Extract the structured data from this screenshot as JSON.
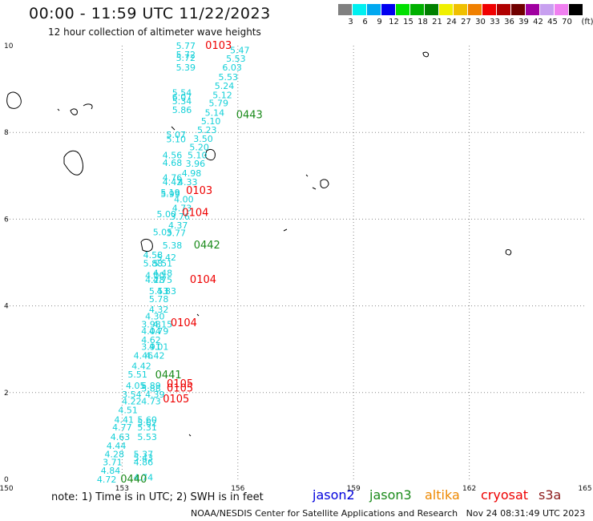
{
  "header": {
    "title": "00:00 - 11:59 UTC 11/22/2023",
    "subtitle": "12 hour collection of altimeter wave heights"
  },
  "legend": {
    "unit": "(ft)",
    "bins": [
      {
        "label": "3",
        "color": "#808080"
      },
      {
        "label": "6",
        "color": "#00f0f0"
      },
      {
        "label": "9",
        "color": "#00a8f0"
      },
      {
        "label": "12",
        "color": "#0000f0"
      },
      {
        "label": "15",
        "color": "#00e000"
      },
      {
        "label": "18",
        "color": "#00b000"
      },
      {
        "label": "21",
        "color": "#008000"
      },
      {
        "label": "24",
        "color": "#f0f000"
      },
      {
        "label": "27",
        "color": "#f0c000"
      },
      {
        "label": "30",
        "color": "#f08000"
      },
      {
        "label": "33",
        "color": "#f00000"
      },
      {
        "label": "36",
        "color": "#b00000"
      },
      {
        "label": "39",
        "color": "#700000"
      },
      {
        "label": "42",
        "color": "#a000a0"
      },
      {
        "label": "45",
        "color": "#c8a0f0"
      },
      {
        "label": "70",
        "color": "#f080f0"
      },
      {
        "label": "",
        "color": "#000000"
      }
    ]
  },
  "map": {
    "lon_range": [
      150,
      165
    ],
    "lat_range": [
      0,
      10
    ],
    "lon_ticks": [
      150,
      153,
      156,
      159,
      162,
      165
    ],
    "lat_ticks": [
      0,
      2,
      4,
      6,
      8,
      10
    ],
    "colors": {
      "wave_value": "#13d0d8",
      "cryosat": "#ee0000",
      "jason3": "#1a8a1a",
      "grid": "#888888",
      "coast": "#000000"
    },
    "time_labels": [
      {
        "text": "0103",
        "sat": "cryosat",
        "lon": 155.5,
        "lat": 10.0
      },
      {
        "text": "0443",
        "sat": "jason3",
        "lon": 156.3,
        "lat": 8.4
      },
      {
        "text": "0103",
        "sat": "cryosat",
        "lon": 155.0,
        "lat": 6.65
      },
      {
        "text": "0104",
        "sat": "cryosat",
        "lon": 154.9,
        "lat": 6.15
      },
      {
        "text": "0442",
        "sat": "jason3",
        "lon": 155.2,
        "lat": 5.4
      },
      {
        "text": "0104",
        "sat": "cryosat",
        "lon": 155.1,
        "lat": 4.6
      },
      {
        "text": "0104",
        "sat": "cryosat",
        "lon": 154.6,
        "lat": 3.6
      },
      {
        "text": "0441",
        "sat": "jason3",
        "lon": 154.2,
        "lat": 2.4
      },
      {
        "text": "0105",
        "sat": "cryosat",
        "lon": 154.5,
        "lat": 2.2
      },
      {
        "text": "0105",
        "sat": "cryosat",
        "lon": 154.5,
        "lat": 2.1
      },
      {
        "text": "0105",
        "sat": "cryosat",
        "lon": 154.4,
        "lat": 1.85
      },
      {
        "text": "0440",
        "sat": "jason3",
        "lon": 153.3,
        "lat": 0.0
      }
    ],
    "wave_heights": [
      {
        "v": "5.77",
        "lon": 154.65,
        "lat": 10.0
      },
      {
        "v": "5.72",
        "lon": 154.65,
        "lat": 9.8
      },
      {
        "v": "5.72",
        "lon": 154.65,
        "lat": 9.72
      },
      {
        "v": "5.39",
        "lon": 154.65,
        "lat": 9.5
      },
      {
        "v": "5.54",
        "lon": 154.55,
        "lat": 8.92
      },
      {
        "v": "6.07",
        "lon": 154.55,
        "lat": 8.82
      },
      {
        "v": "5.34",
        "lon": 154.55,
        "lat": 8.72
      },
      {
        "v": "5.86",
        "lon": 154.55,
        "lat": 8.52
      },
      {
        "v": "5.07",
        "lon": 154.4,
        "lat": 7.95
      },
      {
        "v": "5.10",
        "lon": 154.4,
        "lat": 7.85
      },
      {
        "v": "4.56",
        "lon": 154.3,
        "lat": 7.48
      },
      {
        "v": "4.68",
        "lon": 154.3,
        "lat": 7.3
      },
      {
        "v": "4.76",
        "lon": 154.3,
        "lat": 6.96
      },
      {
        "v": "4.42",
        "lon": 154.3,
        "lat": 6.86
      },
      {
        "v": "5.19",
        "lon": 154.25,
        "lat": 6.62
      },
      {
        "v": "5.99",
        "lon": 154.25,
        "lat": 6.58
      },
      {
        "v": "5.00",
        "lon": 154.15,
        "lat": 6.12
      },
      {
        "v": "5.05",
        "lon": 154.05,
        "lat": 5.7
      },
      {
        "v": "4.58",
        "lon": 153.8,
        "lat": 5.18
      },
      {
        "v": "5.42",
        "lon": 154.15,
        "lat": 5.12
      },
      {
        "v": "5.88",
        "lon": 153.8,
        "lat": 4.98
      },
      {
        "v": "5.51",
        "lon": 154.05,
        "lat": 4.98
      },
      {
        "v": "4.48",
        "lon": 154.05,
        "lat": 4.76
      },
      {
        "v": "4.00",
        "lon": 153.85,
        "lat": 4.7
      },
      {
        "v": "4.28",
        "lon": 153.85,
        "lat": 4.6
      },
      {
        "v": "4.75",
        "lon": 154.05,
        "lat": 4.6
      },
      {
        "v": "5.53",
        "lon": 153.95,
        "lat": 4.34
      },
      {
        "v": "4.83",
        "lon": 154.15,
        "lat": 4.34
      },
      {
        "v": "5.78",
        "lon": 153.95,
        "lat": 4.16
      },
      {
        "v": "4.32",
        "lon": 153.95,
        "lat": 3.92
      },
      {
        "v": "4.30",
        "lon": 153.85,
        "lat": 3.76
      },
      {
        "v": "3.98",
        "lon": 153.75,
        "lat": 3.58
      },
      {
        "v": "4.15",
        "lon": 154.05,
        "lat": 3.58
      },
      {
        "v": "4.04",
        "lon": 153.75,
        "lat": 3.42
      },
      {
        "v": "4.79",
        "lon": 153.95,
        "lat": 3.42
      },
      {
        "v": "4.62",
        "lon": 153.75,
        "lat": 3.22
      },
      {
        "v": "3.91",
        "lon": 153.75,
        "lat": 3.06
      },
      {
        "v": "4.01",
        "lon": 153.95,
        "lat": 3.06
      },
      {
        "v": "4.46",
        "lon": 153.55,
        "lat": 2.86
      },
      {
        "v": "4.42",
        "lon": 153.85,
        "lat": 2.86
      },
      {
        "v": "4.42",
        "lon": 153.5,
        "lat": 2.62
      },
      {
        "v": "5.51",
        "lon": 153.4,
        "lat": 2.42
      },
      {
        "v": "4.05",
        "lon": 153.35,
        "lat": 2.16
      },
      {
        "v": "5.89",
        "lon": 153.75,
        "lat": 2.16
      },
      {
        "v": "5.88",
        "lon": 153.75,
        "lat": 2.1
      },
      {
        "v": "3.54",
        "lon": 153.25,
        "lat": 1.96
      },
      {
        "v": "4.39",
        "lon": 153.85,
        "lat": 1.96
      },
      {
        "v": "4.22",
        "lon": 153.25,
        "lat": 1.8
      },
      {
        "v": "4.73",
        "lon": 153.75,
        "lat": 1.8
      },
      {
        "v": "4.51",
        "lon": 153.15,
        "lat": 1.6
      },
      {
        "v": "4.41",
        "lon": 153.05,
        "lat": 1.38
      },
      {
        "v": "5.60",
        "lon": 153.65,
        "lat": 1.38
      },
      {
        "v": "5.62",
        "lon": 153.65,
        "lat": 1.3
      },
      {
        "v": "4.77",
        "lon": 153.0,
        "lat": 1.2
      },
      {
        "v": "5.31",
        "lon": 153.65,
        "lat": 1.2
      },
      {
        "v": "4.63",
        "lon": 152.95,
        "lat": 0.98
      },
      {
        "v": "5.53",
        "lon": 153.65,
        "lat": 0.98
      },
      {
        "v": "4.44",
        "lon": 152.85,
        "lat": 0.78
      },
      {
        "v": "4.28",
        "lon": 152.8,
        "lat": 0.58
      },
      {
        "v": "5.37",
        "lon": 153.55,
        "lat": 0.58
      },
      {
        "v": "5.43",
        "lon": 153.55,
        "lat": 0.5
      },
      {
        "v": "3.71",
        "lon": 152.75,
        "lat": 0.4
      },
      {
        "v": "4.86",
        "lon": 153.55,
        "lat": 0.4
      },
      {
        "v": "4.84",
        "lon": 152.7,
        "lat": 0.2
      },
      {
        "v": "4.72",
        "lon": 152.6,
        "lat": 0.0
      },
      {
        "v": "4.74",
        "lon": 153.55,
        "lat": 0.05
      },
      {
        "v": "5.47",
        "lon": 156.05,
        "lat": 9.9
      },
      {
        "v": "5.53",
        "lon": 155.95,
        "lat": 9.7
      },
      {
        "v": "6.03",
        "lon": 155.85,
        "lat": 9.5
      },
      {
        "v": "5.53",
        "lon": 155.75,
        "lat": 9.28
      },
      {
        "v": "5.24",
        "lon": 155.65,
        "lat": 9.08
      },
      {
        "v": "5.12",
        "lon": 155.6,
        "lat": 8.86
      },
      {
        "v": "5.79",
        "lon": 155.5,
        "lat": 8.68
      },
      {
        "v": "5.14",
        "lon": 155.4,
        "lat": 8.46
      },
      {
        "v": "5.10",
        "lon": 155.3,
        "lat": 8.26
      },
      {
        "v": "5.23",
        "lon": 155.2,
        "lat": 8.06
      },
      {
        "v": "3.50",
        "lon": 155.1,
        "lat": 7.86
      },
      {
        "v": "5.20",
        "lon": 155.0,
        "lat": 7.66
      },
      {
        "v": "5.10",
        "lon": 154.95,
        "lat": 7.48
      },
      {
        "v": "3.96",
        "lon": 154.9,
        "lat": 7.28
      },
      {
        "v": "4.98",
        "lon": 154.8,
        "lat": 7.06
      },
      {
        "v": "4.33",
        "lon": 154.7,
        "lat": 6.86
      },
      {
        "v": "4.00",
        "lon": 154.6,
        "lat": 6.46
      },
      {
        "v": "4.73",
        "lon": 154.55,
        "lat": 6.26
      },
      {
        "v": "3.76",
        "lon": 154.5,
        "lat": 6.06
      },
      {
        "v": "4.37",
        "lon": 154.45,
        "lat": 5.86
      },
      {
        "v": "3.77",
        "lon": 154.4,
        "lat": 5.68
      },
      {
        "v": "5.38",
        "lon": 154.3,
        "lat": 5.4
      }
    ]
  },
  "footer": {
    "note": "note: 1) Time is in UTC; 2) SWH is in feet",
    "satellites": [
      {
        "name": "jason2",
        "color": "#0000dd",
        "x": 390
      },
      {
        "name": "jason3",
        "color": "#1a8a1a",
        "x": 461
      },
      {
        "name": "altika",
        "color": "#ee8800",
        "x": 530
      },
      {
        "name": "cryosat",
        "color": "#ee0000",
        "x": 600
      },
      {
        "name": "s3a",
        "color": "#8b1a1a",
        "x": 672
      }
    ],
    "credit": "NOAA/NESDIS Center for Satellite Applications and Research   Nov 24 08:31:49 UTC 2023"
  }
}
